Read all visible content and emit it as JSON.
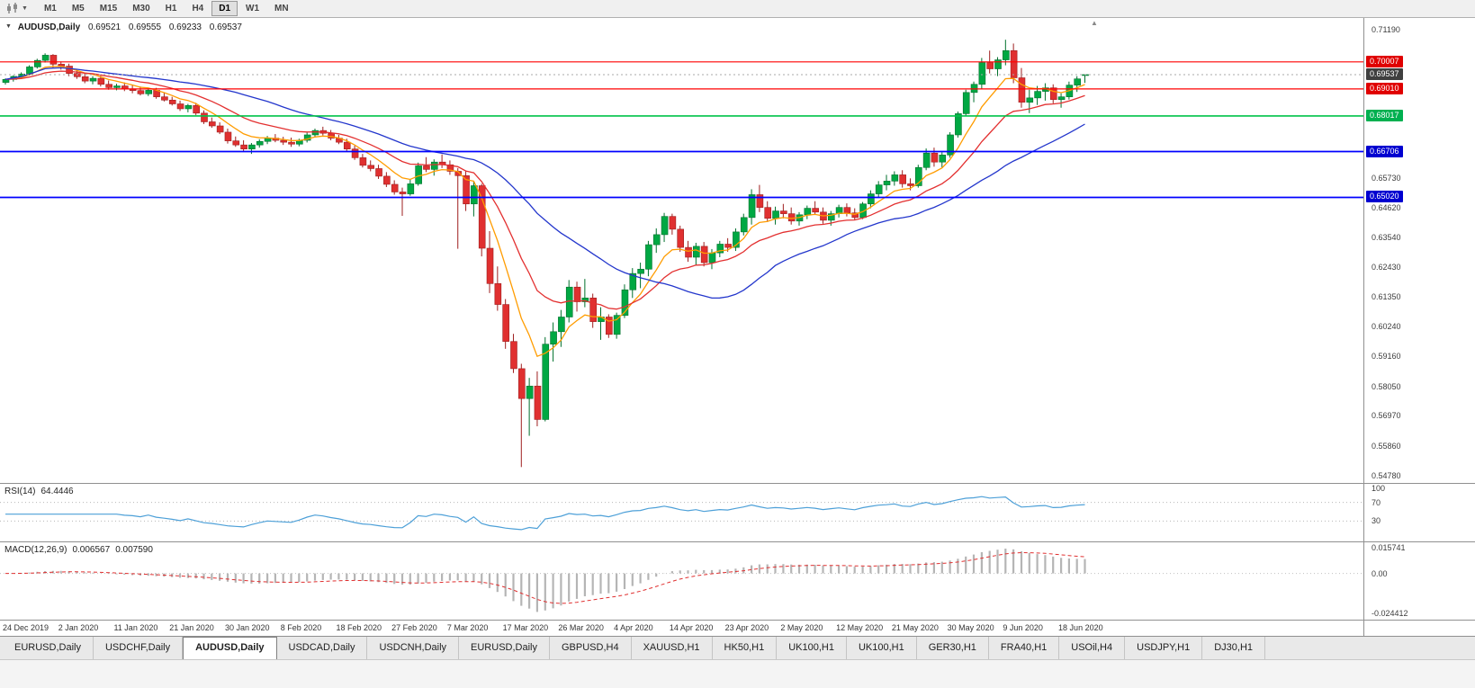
{
  "toolbar": {
    "timeframes": [
      "M1",
      "M5",
      "M15",
      "M30",
      "H1",
      "H4",
      "D1",
      "W1",
      "MN"
    ],
    "active_timeframe": "D1"
  },
  "icons": {
    "chart_collapse": "▼",
    "toolbar_caret": "▼",
    "shift_marker": "▲"
  },
  "chart": {
    "symbol": "AUDUSD,Daily",
    "open": "0.69521",
    "high": "0.69555",
    "low": "0.69233",
    "close": "0.69537"
  },
  "chart_data": {
    "type": "candlestick",
    "symbol": "AUDUSD",
    "timeframe": "Daily",
    "ylim": [
      0.5478,
      0.7119
    ],
    "bars_per_tick": 7,
    "up_color": "#00A843",
    "down_color": "#E03030",
    "x_tick_labels": [
      "24 Dec 2019",
      "2 Jan 2020",
      "11 Jan 2020",
      "21 Jan 2020",
      "30 Jan 2020",
      "8 Feb 2020",
      "18 Feb 2020",
      "27 Feb 2020",
      "7 Mar 2020",
      "17 Mar 2020",
      "26 Mar 2020",
      "4 Apr 2020",
      "14 Apr 2020",
      "23 Apr 2020",
      "2 May 2020",
      "12 May 2020",
      "21 May 2020",
      "30 May 2020",
      "9 Jun 2020",
      "18 Jun 2020"
    ],
    "candles": [
      [
        0.6925,
        0.694,
        0.6917,
        0.6936
      ],
      [
        0.6936,
        0.6951,
        0.6928,
        0.6947
      ],
      [
        0.6947,
        0.6962,
        0.6938,
        0.6956
      ],
      [
        0.6956,
        0.6988,
        0.695,
        0.6982
      ],
      [
        0.6982,
        0.7012,
        0.6976,
        0.7006
      ],
      [
        0.7006,
        0.7032,
        0.6998,
        0.7025
      ],
      [
        0.7025,
        0.7029,
        0.698,
        0.6992
      ],
      [
        0.6992,
        0.7002,
        0.6972,
        0.6985
      ],
      [
        0.6985,
        0.6994,
        0.6948,
        0.6958
      ],
      [
        0.6958,
        0.6972,
        0.6938,
        0.6946
      ],
      [
        0.6946,
        0.696,
        0.6922,
        0.693
      ],
      [
        0.693,
        0.6948,
        0.6918,
        0.694
      ],
      [
        0.694,
        0.6952,
        0.691,
        0.6918
      ],
      [
        0.6918,
        0.6932,
        0.6898,
        0.6906
      ],
      [
        0.6906,
        0.692,
        0.6896,
        0.6912
      ],
      [
        0.6912,
        0.6925,
        0.6893,
        0.69
      ],
      [
        0.69,
        0.6915,
        0.6885,
        0.6895
      ],
      [
        0.6895,
        0.691,
        0.6877,
        0.6883
      ],
      [
        0.6883,
        0.6902,
        0.6875,
        0.6896
      ],
      [
        0.6896,
        0.6905,
        0.6865,
        0.6872
      ],
      [
        0.6872,
        0.6886,
        0.6855,
        0.686
      ],
      [
        0.686,
        0.6872,
        0.684,
        0.6846
      ],
      [
        0.6846,
        0.6858,
        0.682,
        0.6828
      ],
      [
        0.6828,
        0.6846,
        0.6815,
        0.684
      ],
      [
        0.684,
        0.685,
        0.6805,
        0.6812
      ],
      [
        0.6812,
        0.6822,
        0.6772,
        0.678
      ],
      [
        0.678,
        0.6796,
        0.6758,
        0.6765
      ],
      [
        0.6765,
        0.6778,
        0.6735,
        0.6742
      ],
      [
        0.6742,
        0.6755,
        0.67,
        0.671
      ],
      [
        0.671,
        0.6726,
        0.6688,
        0.6695
      ],
      [
        0.6695,
        0.6712,
        0.667,
        0.668
      ],
      [
        0.668,
        0.6702,
        0.6662,
        0.6695
      ],
      [
        0.6695,
        0.6716,
        0.6685,
        0.6708
      ],
      [
        0.6708,
        0.6728,
        0.6698,
        0.672
      ],
      [
        0.672,
        0.6735,
        0.6705,
        0.6712
      ],
      [
        0.6712,
        0.6725,
        0.6695,
        0.6705
      ],
      [
        0.6705,
        0.6722,
        0.6688,
        0.6698
      ],
      [
        0.6698,
        0.6718,
        0.669,
        0.6712
      ],
      [
        0.6712,
        0.674,
        0.6704,
        0.6732
      ],
      [
        0.6732,
        0.6755,
        0.6722,
        0.6748
      ],
      [
        0.6748,
        0.6762,
        0.673,
        0.6738
      ],
      [
        0.6738,
        0.675,
        0.6712,
        0.672
      ],
      [
        0.672,
        0.6732,
        0.6698,
        0.6705
      ],
      [
        0.6705,
        0.6718,
        0.6672,
        0.668
      ],
      [
        0.668,
        0.6692,
        0.664,
        0.6648
      ],
      [
        0.6648,
        0.6662,
        0.6612,
        0.662
      ],
      [
        0.662,
        0.6638,
        0.6598,
        0.6608
      ],
      [
        0.6608,
        0.6622,
        0.657,
        0.658
      ],
      [
        0.658,
        0.6595,
        0.654,
        0.655
      ],
      [
        0.655,
        0.6565,
        0.6512,
        0.6522
      ],
      [
        0.6522,
        0.6538,
        0.6434,
        0.6515
      ],
      [
        0.6515,
        0.6568,
        0.6508,
        0.6552
      ],
      [
        0.6552,
        0.663,
        0.6545,
        0.6618
      ],
      [
        0.6618,
        0.665,
        0.6595,
        0.6605
      ],
      [
        0.6605,
        0.6642,
        0.6582,
        0.6632
      ],
      [
        0.6632,
        0.666,
        0.661,
        0.6622
      ],
      [
        0.6622,
        0.6638,
        0.6585,
        0.6598
      ],
      [
        0.6598,
        0.661,
        0.6313,
        0.6582
      ],
      [
        0.6582,
        0.6598,
        0.6452,
        0.6478
      ],
      [
        0.6478,
        0.6562,
        0.6432,
        0.6545
      ],
      [
        0.6545,
        0.6552,
        0.6285,
        0.6315
      ],
      [
        0.6315,
        0.6378,
        0.615,
        0.6185
      ],
      [
        0.6185,
        0.6248,
        0.6085,
        0.6108
      ],
      [
        0.6108,
        0.6128,
        0.5945,
        0.5972
      ],
      [
        0.5972,
        0.6,
        0.5856,
        0.5872
      ],
      [
        0.5872,
        0.589,
        0.551,
        0.5762
      ],
      [
        0.5762,
        0.5838,
        0.5625,
        0.5808
      ],
      [
        0.5808,
        0.5862,
        0.566,
        0.5685
      ],
      [
        0.5685,
        0.5988,
        0.5678,
        0.5962
      ],
      [
        0.5962,
        0.6042,
        0.5898,
        0.6008
      ],
      [
        0.6008,
        0.6088,
        0.5952,
        0.6062
      ],
      [
        0.6062,
        0.6198,
        0.6042,
        0.6172
      ],
      [
        0.6172,
        0.6192,
        0.6082,
        0.6118
      ],
      [
        0.6118,
        0.6202,
        0.6098,
        0.6132
      ],
      [
        0.6132,
        0.6148,
        0.6022,
        0.6045
      ],
      [
        0.6045,
        0.6098,
        0.5978,
        0.6062
      ],
      [
        0.6062,
        0.6072,
        0.5985,
        0.5998
      ],
      [
        0.5998,
        0.6078,
        0.5982,
        0.6068
      ],
      [
        0.6068,
        0.6182,
        0.6058,
        0.6162
      ],
      [
        0.6162,
        0.6242,
        0.6132,
        0.6222
      ],
      [
        0.6222,
        0.6262,
        0.6168,
        0.6238
      ],
      [
        0.6238,
        0.6342,
        0.6212,
        0.6328
      ],
      [
        0.6328,
        0.6388,
        0.6298,
        0.6365
      ],
      [
        0.6365,
        0.6445,
        0.6338,
        0.6432
      ],
      [
        0.6432,
        0.6442,
        0.6365,
        0.6385
      ],
      [
        0.6385,
        0.6398,
        0.6302,
        0.6318
      ],
      [
        0.6318,
        0.6342,
        0.6265,
        0.6282
      ],
      [
        0.6282,
        0.6335,
        0.6252,
        0.6322
      ],
      [
        0.6322,
        0.6338,
        0.6248,
        0.6262
      ],
      [
        0.6262,
        0.6312,
        0.6238,
        0.6298
      ],
      [
        0.6298,
        0.6342,
        0.6282,
        0.633
      ],
      [
        0.633,
        0.6352,
        0.6302,
        0.6318
      ],
      [
        0.6318,
        0.6388,
        0.6305,
        0.6375
      ],
      [
        0.6375,
        0.6442,
        0.6362,
        0.6428
      ],
      [
        0.6428,
        0.6532,
        0.6402,
        0.6512
      ],
      [
        0.6512,
        0.6548,
        0.6448,
        0.6465
      ],
      [
        0.6465,
        0.6488,
        0.6412,
        0.6425
      ],
      [
        0.6425,
        0.6468,
        0.6402,
        0.6452
      ],
      [
        0.6452,
        0.6478,
        0.6425,
        0.6442
      ],
      [
        0.6442,
        0.6465,
        0.6402,
        0.6415
      ],
      [
        0.6415,
        0.6448,
        0.6398,
        0.6438
      ],
      [
        0.6438,
        0.6472,
        0.6422,
        0.6462
      ],
      [
        0.6462,
        0.6488,
        0.6438,
        0.6448
      ],
      [
        0.6448,
        0.6465,
        0.6405,
        0.6418
      ],
      [
        0.6418,
        0.6452,
        0.6398,
        0.6442
      ],
      [
        0.6442,
        0.6475,
        0.6428,
        0.6465
      ],
      [
        0.6465,
        0.648,
        0.6432,
        0.6445
      ],
      [
        0.6445,
        0.6462,
        0.6418,
        0.6428
      ],
      [
        0.6428,
        0.6485,
        0.6422,
        0.6478
      ],
      [
        0.6478,
        0.6528,
        0.6462,
        0.6515
      ],
      [
        0.6515,
        0.6562,
        0.6502,
        0.6548
      ],
      [
        0.6548,
        0.6585,
        0.6528,
        0.6562
      ],
      [
        0.6562,
        0.6598,
        0.6545,
        0.6585
      ],
      [
        0.6585,
        0.6602,
        0.6538,
        0.6552
      ],
      [
        0.6552,
        0.6572,
        0.6528,
        0.6545
      ],
      [
        0.6545,
        0.6622,
        0.6538,
        0.6612
      ],
      [
        0.6612,
        0.6682,
        0.6602,
        0.6665
      ],
      [
        0.6665,
        0.6685,
        0.6615,
        0.6632
      ],
      [
        0.6632,
        0.6668,
        0.6612,
        0.6658
      ],
      [
        0.6658,
        0.6742,
        0.6648,
        0.6732
      ],
      [
        0.6732,
        0.6818,
        0.6722,
        0.681
      ],
      [
        0.681,
        0.6898,
        0.6802,
        0.6888
      ],
      [
        0.6888,
        0.6928,
        0.6852,
        0.6918
      ],
      [
        0.6918,
        0.7015,
        0.6902,
        0.6998
      ],
      [
        0.6998,
        0.7042,
        0.6958,
        0.6975
      ],
      [
        0.6975,
        0.7018,
        0.6948,
        0.7008
      ],
      [
        0.7008,
        0.7082,
        0.6988,
        0.7042
      ],
      [
        0.7042,
        0.7068,
        0.6922,
        0.6942
      ],
      [
        0.6942,
        0.6978,
        0.6832,
        0.6852
      ],
      [
        0.6852,
        0.6898,
        0.6812,
        0.6868
      ],
      [
        0.6868,
        0.6912,
        0.6842,
        0.6892
      ],
      [
        0.6892,
        0.6922,
        0.6858,
        0.6905
      ],
      [
        0.6905,
        0.6918,
        0.6848,
        0.6862
      ],
      [
        0.6862,
        0.6885,
        0.6832,
        0.6872
      ],
      [
        0.6872,
        0.6928,
        0.6862,
        0.6915
      ],
      [
        0.6915,
        0.6948,
        0.689,
        0.6938
      ],
      [
        0.69521,
        0.69555,
        0.69233,
        0.69537
      ]
    ],
    "moving_averages": [
      {
        "name": "fast-ma",
        "color": "#FF9C00",
        "period": 7,
        "method": "ema"
      },
      {
        "name": "mid-ma",
        "color": "#E33030",
        "period": 16,
        "method": "ema"
      },
      {
        "name": "slow-ma",
        "color": "#2336CC",
        "period": 30,
        "method": "sma"
      }
    ],
    "hlines": [
      {
        "price": 0.70007,
        "color": "#FF0000",
        "width": 1.2,
        "style": "solid"
      },
      {
        "price": 0.6901,
        "color": "#FF0000",
        "width": 1.2,
        "style": "solid"
      },
      {
        "price": 0.68017,
        "color": "#00C24A",
        "width": 1.6,
        "style": "solid"
      },
      {
        "price": 0.66706,
        "color": "#0000FF",
        "width": 1.8,
        "style": "solid"
      },
      {
        "price": 0.6502,
        "color": "#0000FF",
        "width": 1.8,
        "style": "solid"
      },
      {
        "price": 0.69537,
        "color": "#aaaaaa",
        "width": 1,
        "style": "dotted"
      }
    ],
    "price_axis": {
      "ticks": [
        "0.71190",
        "0.65730",
        "0.64620",
        "0.63540",
        "0.62430",
        "0.61350",
        "0.60240",
        "0.59160",
        "0.58050",
        "0.56970",
        "0.55860",
        "0.54780"
      ],
      "badges": [
        {
          "value": "0.70007",
          "price": 0.70007,
          "color": "#E00000"
        },
        {
          "value": "0.69537",
          "price": 0.69537,
          "color": "#3F3F3F"
        },
        {
          "value": "0.69010",
          "price": 0.6901,
          "color": "#E00000"
        },
        {
          "value": "0.68017",
          "price": 0.68017,
          "color": "#00B050"
        },
        {
          "value": "0.66706",
          "price": 0.66706,
          "color": "#0000D0"
        },
        {
          "value": "0.65020",
          "price": 0.6502,
          "color": "#0000D0"
        }
      ]
    },
    "rsi": {
      "title": "RSI(14)",
      "value": "64.4446",
      "period": 14,
      "levels": [
        100,
        70,
        30
      ],
      "line_color": "#4DA0D8"
    },
    "macd": {
      "title": "MACD(12,26,9)",
      "main_value": "0.006567",
      "signal_value": "0.007590",
      "fast": 12,
      "slow": 26,
      "signal": 9,
      "axis_labels": [
        "0.015741",
        "0.00",
        "-0.024412"
      ],
      "axis_values": [
        0.015741,
        0,
        -0.024412
      ]
    }
  },
  "tabs": {
    "items": [
      "EURUSD,Daily",
      "USDCHF,Daily",
      "AUDUSD,Daily",
      "USDCAD,Daily",
      "USDCNH,Daily",
      "EURUSD,Daily",
      "GBPUSD,H4",
      "XAUUSD,H1",
      "HK50,H1",
      "UK100,H1",
      "UK100,H1",
      "GER30,H1",
      "FRA40,H1",
      "USOil,H4",
      "USDJPY,H1",
      "DJ30,H1"
    ],
    "active_index": 2
  }
}
